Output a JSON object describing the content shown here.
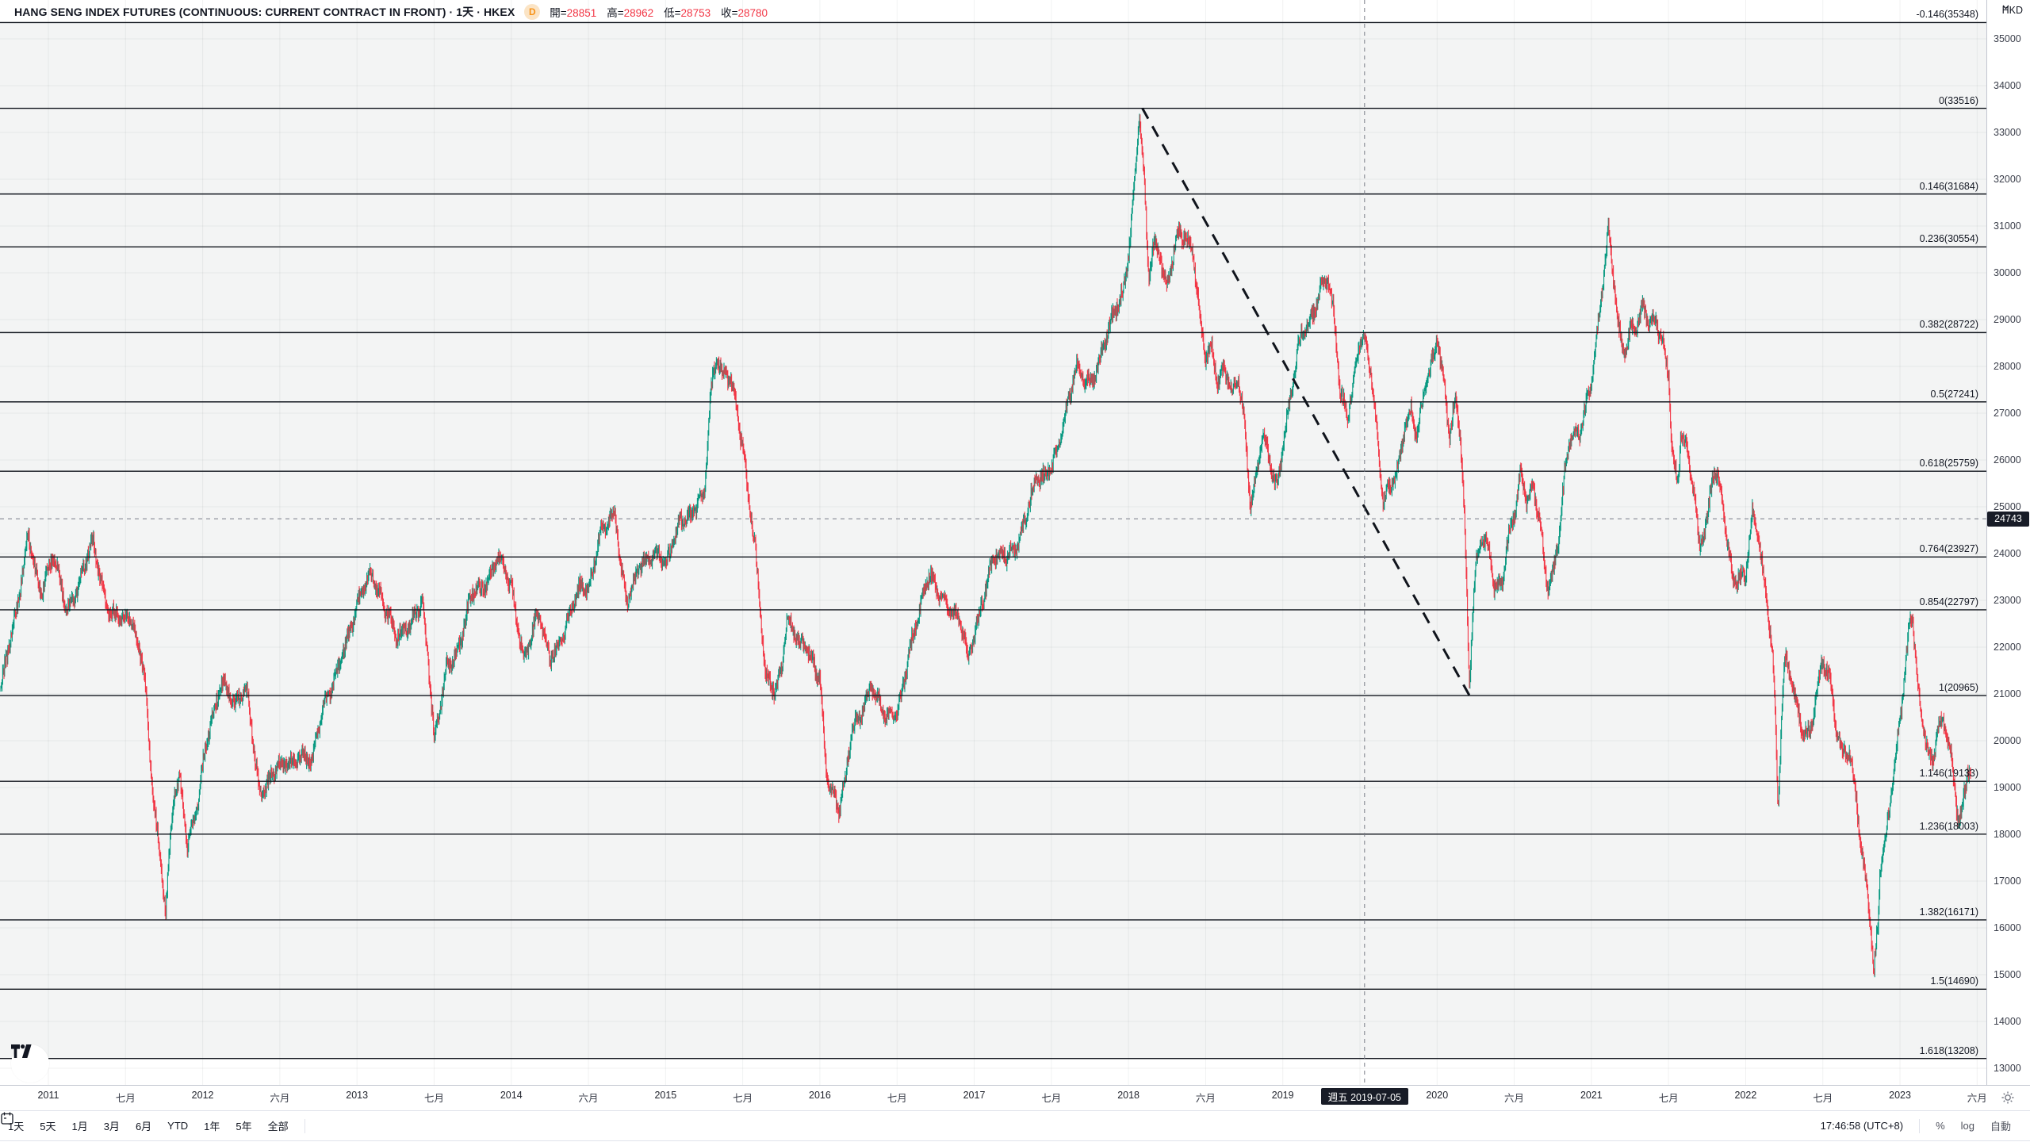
{
  "header": {
    "title": "HANG SENG INDEX FUTURES (CONTINUOUS: CURRENT CONTRACT IN FRONT) · 1天 · HKEX",
    "delayed_badge": "D",
    "ohlc": {
      "open_label": "開=",
      "open": "28851",
      "high_label": "高=",
      "high": "28962",
      "low_label": "低=",
      "low": "28753",
      "close_label": "收=",
      "close": "28780"
    }
  },
  "price_axis": {
    "currency": "HKD",
    "crosshair_price": "24743"
  },
  "time_axis": {
    "crosshair_date": "週五 2019-07-05"
  },
  "toolbar": {
    "ranges": [
      "1天",
      "5天",
      "1月",
      "3月",
      "6月",
      "YTD",
      "1年",
      "5年",
      "全部"
    ],
    "clock": "17:46:58 (UTC+8)",
    "percent_label": "%",
    "log_label": "log",
    "auto_label": "自動"
  },
  "colors": {
    "up": "#089981",
    "down": "#f23645",
    "fib_line": "#10141c",
    "crosshair": "#787b86",
    "badge_bg": "#181c27",
    "value_red": "#f23645"
  },
  "chart_data": {
    "type": "candlestick",
    "title": "HANG SENG INDEX FUTURES (CONTINUOUS: CURRENT CONTRACT IN FRONT)",
    "interval": "1天",
    "exchange": "HKEX",
    "currency": "HKD",
    "hovered_bar": {
      "date": "2019-07-05",
      "open": 28851,
      "high": 28962,
      "low": 28753,
      "close": 28780
    },
    "crosshair": {
      "year": 2019.53,
      "price": 24743
    },
    "y_axis": {
      "range": [
        12644,
        35830
      ],
      "ticks": [
        35000,
        34000,
        33000,
        32000,
        31000,
        30000,
        29000,
        28000,
        27000,
        26000,
        25000,
        24000,
        23000,
        22000,
        21000,
        20000,
        19000,
        18000,
        17000,
        16000,
        15000,
        14000,
        13000
      ]
    },
    "x_axis": {
      "year_start": 2010.6865,
      "year_end": 2023.56,
      "year_labels": [
        2011,
        2012,
        2013,
        2014,
        2015,
        2016,
        2017,
        2018,
        2019,
        2020,
        2021,
        2022,
        2023
      ],
      "mid_labels": [
        "七月",
        "六月",
        "七月",
        "六月",
        "七月",
        "七月",
        "七月",
        "六月",
        null,
        "六月",
        "七月",
        "七月",
        "六月"
      ]
    },
    "fib_retracement": {
      "anchor_high": {
        "year": 2018.09,
        "price": 33516
      },
      "anchor_low": {
        "year": 2020.21,
        "price": 20965
      },
      "levels": [
        {
          "level": "-0.146",
          "price": 35348,
          "label": "-0.146(35348)"
        },
        {
          "level": "0",
          "price": 33516,
          "label": "0(33516)"
        },
        {
          "level": "0.146",
          "price": 31684,
          "label": "0.146(31684)"
        },
        {
          "level": "0.236",
          "price": 30554,
          "label": "0.236(30554)"
        },
        {
          "level": "0.382",
          "price": 28722,
          "label": "0.382(28722)"
        },
        {
          "level": "0.5",
          "price": 27241,
          "label": "0.5(27241)"
        },
        {
          "level": "0.618",
          "price": 25759,
          "label": "0.618(25759)"
        },
        {
          "level": "0.764",
          "price": 23927,
          "label": "0.764(23927)"
        },
        {
          "level": "0.854",
          "price": 22797,
          "label": "0.854(22797)"
        },
        {
          "level": "1",
          "price": 20965,
          "label": "1(20965)"
        },
        {
          "level": "1.146",
          "price": 19133,
          "label": "1.146(19133)"
        },
        {
          "level": "1.236",
          "price": 18003,
          "label": "1.236(18003)"
        },
        {
          "level": "1.382",
          "price": 16171,
          "label": "1.382(16171)"
        },
        {
          "level": "1.5",
          "price": 14690,
          "label": "1.5(14690)"
        },
        {
          "level": "1.618",
          "price": 13208,
          "label": "1.618(13208)"
        }
      ]
    },
    "series_monthly_anchors": [
      [
        2010.7,
        21200
      ],
      [
        2010.79,
        22600
      ],
      [
        2010.87,
        24500
      ],
      [
        2010.95,
        23000
      ],
      [
        2011.04,
        23800
      ],
      [
        2011.12,
        22900
      ],
      [
        2011.21,
        23300
      ],
      [
        2011.29,
        24200
      ],
      [
        2011.37,
        23100
      ],
      [
        2011.46,
        22500
      ],
      [
        2011.54,
        22550
      ],
      [
        2011.62,
        21800
      ],
      [
        2011.66,
        19600
      ],
      [
        2011.71,
        17800
      ],
      [
        2011.76,
        16300
      ],
      [
        2011.81,
        18900
      ],
      [
        2011.85,
        19400
      ],
      [
        2011.9,
        17900
      ],
      [
        2011.96,
        18400
      ],
      [
        2012.04,
        20200
      ],
      [
        2012.12,
        21400
      ],
      [
        2012.21,
        20600
      ],
      [
        2012.29,
        21000
      ],
      [
        2012.37,
        18900
      ],
      [
        2012.46,
        19100
      ],
      [
        2012.54,
        19500
      ],
      [
        2012.62,
        19800
      ],
      [
        2012.71,
        19400
      ],
      [
        2012.79,
        20900
      ],
      [
        2012.87,
        21600
      ],
      [
        2012.96,
        22300
      ],
      [
        2013.04,
        23400
      ],
      [
        2013.1,
        23800
      ],
      [
        2013.17,
        22900
      ],
      [
        2013.25,
        22200
      ],
      [
        2013.33,
        22600
      ],
      [
        2013.42,
        22900
      ],
      [
        2013.46,
        21600
      ],
      [
        2013.5,
        19900
      ],
      [
        2013.58,
        21700
      ],
      [
        2013.67,
        21900
      ],
      [
        2013.75,
        23100
      ],
      [
        2013.83,
        23400
      ],
      [
        2013.92,
        23800
      ],
      [
        2014.0,
        23200
      ],
      [
        2014.08,
        21900
      ],
      [
        2014.17,
        22600
      ],
      [
        2014.25,
        21800
      ],
      [
        2014.33,
        22400
      ],
      [
        2014.42,
        23100
      ],
      [
        2014.5,
        23300
      ],
      [
        2014.58,
        24700
      ],
      [
        2014.67,
        24800
      ],
      [
        2014.71,
        23600
      ],
      [
        2014.75,
        23000
      ],
      [
        2014.83,
        23900
      ],
      [
        2014.92,
        23800
      ],
      [
        2015.0,
        23700
      ],
      [
        2015.08,
        24700
      ],
      [
        2015.17,
        24600
      ],
      [
        2015.25,
        25200
      ],
      [
        2015.29,
        27500
      ],
      [
        2015.33,
        28300
      ],
      [
        2015.37,
        27800
      ],
      [
        2015.42,
        27600
      ],
      [
        2015.5,
        26300
      ],
      [
        2015.54,
        25300
      ],
      [
        2015.58,
        24300
      ],
      [
        2015.62,
        22500
      ],
      [
        2015.65,
        21300
      ],
      [
        2015.71,
        21000
      ],
      [
        2015.75,
        21600
      ],
      [
        2015.79,
        22900
      ],
      [
        2015.83,
        22500
      ],
      [
        2015.87,
        22100
      ],
      [
        2015.92,
        21800
      ],
      [
        2016.0,
        21400
      ],
      [
        2016.04,
        19600
      ],
      [
        2016.08,
        19000
      ],
      [
        2016.12,
        18400
      ],
      [
        2016.17,
        19100
      ],
      [
        2016.21,
        20200
      ],
      [
        2016.25,
        20500
      ],
      [
        2016.33,
        21200
      ],
      [
        2016.42,
        20300
      ],
      [
        2016.5,
        20600
      ],
      [
        2016.58,
        21900
      ],
      [
        2016.67,
        22900
      ],
      [
        2016.71,
        23500
      ],
      [
        2016.75,
        23400
      ],
      [
        2016.83,
        22900
      ],
      [
        2016.92,
        22300
      ],
      [
        2016.96,
        21800
      ],
      [
        2017.04,
        23000
      ],
      [
        2017.12,
        23800
      ],
      [
        2017.21,
        24000
      ],
      [
        2017.29,
        24400
      ],
      [
        2017.37,
        25200
      ],
      [
        2017.46,
        25700
      ],
      [
        2017.54,
        26300
      ],
      [
        2017.62,
        27200
      ],
      [
        2017.67,
        27900
      ],
      [
        2017.71,
        27700
      ],
      [
        2017.79,
        27900
      ],
      [
        2017.87,
        28600
      ],
      [
        2017.96,
        29500
      ],
      [
        2018.0,
        30500
      ],
      [
        2018.04,
        32000
      ],
      [
        2018.07,
        33350
      ],
      [
        2018.1,
        32000
      ],
      [
        2018.13,
        29800
      ],
      [
        2018.17,
        30600
      ],
      [
        2018.21,
        30300
      ],
      [
        2018.25,
        29900
      ],
      [
        2018.29,
        30500
      ],
      [
        2018.33,
        30900
      ],
      [
        2018.37,
        30600
      ],
      [
        2018.42,
        30400
      ],
      [
        2018.46,
        29200
      ],
      [
        2018.5,
        28400
      ],
      [
        2018.54,
        28600
      ],
      [
        2018.58,
        27600
      ],
      [
        2018.62,
        27900
      ],
      [
        2018.67,
        27400
      ],
      [
        2018.71,
        27900
      ],
      [
        2018.75,
        27100
      ],
      [
        2018.79,
        25100
      ],
      [
        2018.83,
        25600
      ],
      [
        2018.87,
        26400
      ],
      [
        2018.92,
        25800
      ],
      [
        2018.96,
        25500
      ],
      [
        2019.0,
        26400
      ],
      [
        2019.08,
        27900
      ],
      [
        2019.12,
        28500
      ],
      [
        2019.17,
        28800
      ],
      [
        2019.21,
        29300
      ],
      [
        2019.25,
        29800
      ],
      [
        2019.29,
        29900
      ],
      [
        2019.33,
        29000
      ],
      [
        2019.37,
        27300
      ],
      [
        2019.42,
        26900
      ],
      [
        2019.46,
        27800
      ],
      [
        2019.5,
        28700
      ],
      [
        2019.52,
        28800
      ],
      [
        2019.54,
        28400
      ],
      [
        2019.58,
        27600
      ],
      [
        2019.62,
        26000
      ],
      [
        2019.65,
        25100
      ],
      [
        2019.71,
        25700
      ],
      [
        2019.75,
        26100
      ],
      [
        2019.79,
        26800
      ],
      [
        2019.83,
        27000
      ],
      [
        2019.87,
        26400
      ],
      [
        2019.92,
        27600
      ],
      [
        2019.96,
        28200
      ],
      [
        2020.0,
        28800
      ],
      [
        2020.04,
        27800
      ],
      [
        2020.08,
        26400
      ],
      [
        2020.12,
        27200
      ],
      [
        2020.15,
        26500
      ],
      [
        2020.17,
        25400
      ],
      [
        2020.19,
        23500
      ],
      [
        2020.21,
        21300
      ],
      [
        2020.23,
        22800
      ],
      [
        2020.25,
        23800
      ],
      [
        2020.29,
        24300
      ],
      [
        2020.33,
        24000
      ],
      [
        2020.37,
        23100
      ],
      [
        2020.42,
        23400
      ],
      [
        2020.46,
        24400
      ],
      [
        2020.5,
        24900
      ],
      [
        2020.54,
        25600
      ],
      [
        2020.58,
        24900
      ],
      [
        2020.62,
        25300
      ],
      [
        2020.67,
        24600
      ],
      [
        2020.71,
        23400
      ],
      [
        2020.75,
        23600
      ],
      [
        2020.79,
        24300
      ],
      [
        2020.83,
        25700
      ],
      [
        2020.87,
        26400
      ],
      [
        2020.92,
        26600
      ],
      [
        2020.96,
        27300
      ],
      [
        2021.0,
        27800
      ],
      [
        2021.04,
        28800
      ],
      [
        2021.08,
        29800
      ],
      [
        2021.11,
        30900
      ],
      [
        2021.13,
        30300
      ],
      [
        2021.17,
        29100
      ],
      [
        2021.21,
        28500
      ],
      [
        2021.25,
        28900
      ],
      [
        2021.29,
        28800
      ],
      [
        2021.33,
        29200
      ],
      [
        2021.37,
        28900
      ],
      [
        2021.42,
        29100
      ],
      [
        2021.46,
        28700
      ],
      [
        2021.5,
        27900
      ],
      [
        2021.52,
        26300
      ],
      [
        2021.56,
        25300
      ],
      [
        2021.58,
        26400
      ],
      [
        2021.62,
        26100
      ],
      [
        2021.67,
        25300
      ],
      [
        2021.7,
        24200
      ],
      [
        2021.75,
        24700
      ],
      [
        2021.79,
        25600
      ],
      [
        2021.83,
        25300
      ],
      [
        2021.87,
        24400
      ],
      [
        2021.92,
        23400
      ],
      [
        2021.96,
        23600
      ],
      [
        2022.0,
        23500
      ],
      [
        2022.04,
        24700
      ],
      [
        2022.08,
        24300
      ],
      [
        2022.12,
        23300
      ],
      [
        2022.17,
        22200
      ],
      [
        2022.19,
        20800
      ],
      [
        2022.21,
        18600
      ],
      [
        2022.23,
        20400
      ],
      [
        2022.25,
        21800
      ],
      [
        2022.29,
        21300
      ],
      [
        2022.33,
        20600
      ],
      [
        2022.37,
        20200
      ],
      [
        2022.42,
        20400
      ],
      [
        2022.46,
        21200
      ],
      [
        2022.5,
        21800
      ],
      [
        2022.54,
        21300
      ],
      [
        2022.58,
        20300
      ],
      [
        2022.62,
        19800
      ],
      [
        2022.67,
        20000
      ],
      [
        2022.71,
        19200
      ],
      [
        2022.75,
        17600
      ],
      [
        2022.79,
        16700
      ],
      [
        2022.81,
        15900
      ],
      [
        2022.83,
        14900
      ],
      [
        2022.86,
        16200
      ],
      [
        2022.87,
        17300
      ],
      [
        2022.9,
        17800
      ],
      [
        2022.92,
        18500
      ],
      [
        2022.96,
        19400
      ],
      [
        2023.0,
        20400
      ],
      [
        2023.04,
        21600
      ],
      [
        2023.06,
        22300
      ],
      [
        2023.08,
        22500
      ],
      [
        2023.1,
        21700
      ],
      [
        2023.13,
        20700
      ],
      [
        2023.17,
        20100
      ],
      [
        2023.21,
        19500
      ],
      [
        2023.25,
        20300
      ],
      [
        2023.29,
        20100
      ],
      [
        2023.33,
        19600
      ],
      [
        2023.35,
        18900
      ],
      [
        2023.38,
        18300
      ],
      [
        2023.42,
        19000
      ],
      [
        2023.44,
        19500
      ],
      [
        2023.46,
        19300
      ]
    ]
  }
}
